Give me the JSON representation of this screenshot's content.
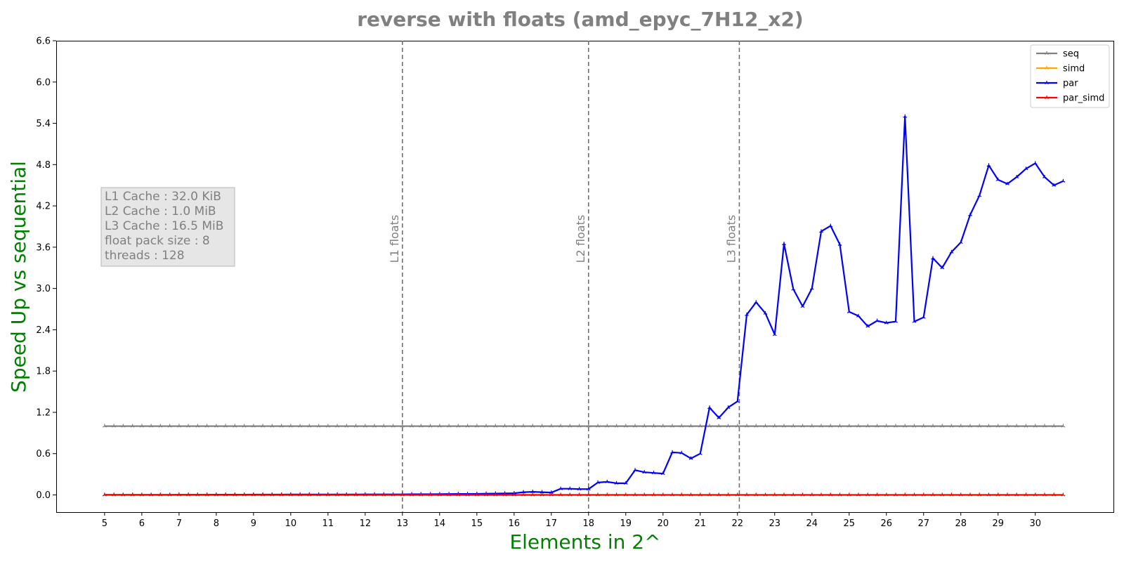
{
  "chart_data": {
    "type": "line",
    "title": "reverse with floats  (amd_epyc_7H12_x2)",
    "xlabel": "Elements in 2^",
    "ylabel": "Speed Up vs sequential",
    "xlim": [
      3.7,
      32.1
    ],
    "ylim": [
      -0.25,
      6.6
    ],
    "x_ticks": [
      "5",
      "6",
      "7",
      "8",
      "9",
      "10",
      "11",
      "12",
      "13",
      "14",
      "15",
      "16",
      "17",
      "18",
      "19",
      "20",
      "21",
      "22",
      "23",
      "24",
      "25",
      "26",
      "27",
      "28",
      "29",
      "30"
    ],
    "y_ticks": [
      "0.0",
      "0.6",
      "1.2",
      "1.8",
      "2.4",
      "3.0",
      "3.6",
      "4.2",
      "4.8",
      "5.4",
      "6.0",
      "6.6"
    ],
    "grid": false,
    "legend_position": "top-right",
    "x": [
      5,
      5.25,
      5.5,
      5.75,
      6,
      6.25,
      6.5,
      6.75,
      7,
      7.25,
      7.5,
      7.75,
      8,
      8.25,
      8.5,
      8.75,
      9,
      9.25,
      9.5,
      9.75,
      10,
      10.25,
      10.5,
      10.75,
      11,
      11.25,
      11.5,
      11.75,
      12,
      12.25,
      12.5,
      12.75,
      13,
      13.25,
      13.5,
      13.75,
      14,
      14.25,
      14.5,
      14.75,
      15,
      15.25,
      15.5,
      15.75,
      16,
      16.25,
      16.5,
      16.75,
      17,
      17.25,
      17.5,
      17.75,
      18,
      18.25,
      18.5,
      18.75,
      19,
      19.25,
      19.5,
      19.75,
      20,
      20.25,
      20.5,
      20.75,
      21,
      21.25,
      21.5,
      21.75,
      22,
      22.25,
      22.5,
      22.75,
      23,
      23.25,
      23.5,
      23.75,
      24,
      24.25,
      24.5,
      24.75,
      25,
      25.25,
      25.5,
      25.75,
      26,
      26.25,
      26.5,
      26.75,
      27,
      27.25,
      27.5,
      27.75,
      28,
      28.25,
      28.5,
      28.75,
      29,
      29.25,
      29.5,
      29.75,
      30,
      30.25,
      30.5,
      30.75
    ],
    "series": [
      {
        "name": "seq",
        "color": "#808080",
        "values": [
          1,
          1,
          1,
          1,
          1,
          1,
          1,
          1,
          1,
          1,
          1,
          1,
          1,
          1,
          1,
          1,
          1,
          1,
          1,
          1,
          1,
          1,
          1,
          1,
          1,
          1,
          1,
          1,
          1,
          1,
          1,
          1,
          1,
          1,
          1,
          1,
          1,
          1,
          1,
          1,
          1,
          1,
          1,
          1,
          1,
          1,
          1,
          1,
          1,
          1,
          1,
          1,
          1,
          1,
          1,
          1,
          1,
          1,
          1,
          1,
          1,
          1,
          1,
          1,
          1,
          1,
          1,
          1,
          1,
          1,
          1,
          1,
          1,
          1,
          1,
          1,
          1,
          1,
          1,
          1,
          1,
          1,
          1,
          1,
          1,
          1,
          1,
          1,
          1,
          1,
          1,
          1,
          1,
          1,
          1,
          1,
          1,
          1,
          1,
          1,
          1,
          1,
          1,
          1
        ]
      },
      {
        "name": "simd",
        "color": "#ffa500",
        "values": [
          0,
          0,
          0,
          0,
          0,
          0,
          0,
          0,
          0,
          0,
          0,
          0,
          0,
          0,
          0,
          0,
          0,
          0,
          0,
          0,
          0,
          0,
          0,
          0,
          0,
          0,
          0,
          0,
          0,
          0,
          0,
          0,
          0,
          0,
          0,
          0,
          0,
          0,
          0,
          0,
          0,
          0,
          0,
          0,
          0,
          0,
          0,
          0,
          0,
          0,
          0,
          0,
          0,
          0,
          0,
          0,
          0,
          0,
          0,
          0,
          0,
          0,
          0,
          0,
          0,
          0,
          0,
          0,
          0,
          0,
          0,
          0,
          0,
          0,
          0,
          0,
          0,
          0,
          0,
          0,
          0,
          0,
          0,
          0,
          0,
          0,
          0,
          0,
          0,
          0,
          0,
          0,
          0,
          0,
          0,
          0,
          0,
          0,
          0,
          0,
          0,
          0,
          0,
          0
        ]
      },
      {
        "name": "par",
        "color": "#0000ff",
        "values": [
          0.002,
          0.002,
          0.002,
          0.002,
          0.002,
          0.002,
          0.002,
          0.002,
          0.003,
          0.003,
          0.003,
          0.003,
          0.004,
          0.004,
          0.004,
          0.004,
          0.005,
          0.005,
          0.005,
          0.005,
          0.006,
          0.006,
          0.006,
          0.006,
          0.007,
          0.007,
          0.007,
          0.007,
          0.008,
          0.008,
          0.008,
          0.008,
          0.008,
          0.01,
          0.01,
          0.01,
          0.012,
          0.013,
          0.014,
          0.014,
          0.015,
          0.018,
          0.02,
          0.022,
          0.025,
          0.04,
          0.045,
          0.04,
          0.035,
          0.09,
          0.09,
          0.085,
          0.085,
          0.18,
          0.19,
          0.17,
          0.17,
          0.36,
          0.33,
          0.32,
          0.31,
          0.62,
          0.61,
          0.53,
          0.6,
          1.27,
          1.12,
          1.27,
          1.36,
          2.62,
          2.8,
          2.64,
          2.33,
          3.65,
          2.99,
          2.74,
          3.0,
          3.83,
          3.91,
          3.64,
          2.66,
          2.6,
          2.45,
          2.53,
          2.5,
          2.52,
          5.5,
          2.52,
          2.58,
          3.44,
          3.3,
          3.53,
          3.67,
          4.07,
          4.35,
          4.79,
          4.58,
          4.52,
          4.62,
          4.74,
          4.82,
          4.62,
          4.5,
          4.56
        ]
      },
      {
        "name": "par_simd",
        "color": "#ff0000",
        "values": [
          0,
          0,
          0,
          0,
          0,
          0,
          0,
          0,
          0,
          0,
          0,
          0,
          0,
          0,
          0,
          0,
          0,
          0,
          0,
          0,
          0,
          0,
          0,
          0,
          0,
          0,
          0,
          0,
          0,
          0,
          0,
          0,
          0,
          0,
          0,
          0,
          0,
          0,
          0,
          0,
          0,
          0,
          0,
          0,
          0,
          0,
          0,
          0,
          0,
          0,
          0,
          0,
          0,
          0,
          0,
          0,
          0,
          0,
          0,
          0,
          0,
          0,
          0,
          0,
          0,
          0,
          0,
          0,
          0,
          0,
          0,
          0,
          0,
          0,
          0,
          0,
          0,
          0,
          0,
          0,
          0,
          0,
          0,
          0,
          0,
          0,
          0,
          0,
          0,
          0,
          0,
          0,
          0,
          0,
          0,
          0,
          0,
          0,
          0,
          0,
          0,
          0,
          0,
          0
        ]
      }
    ],
    "vlines": [
      {
        "x": 13,
        "label": "L1 floats"
      },
      {
        "x": 18,
        "label": "L2 floats"
      },
      {
        "x": 22.05,
        "label": "L3 floats"
      }
    ],
    "info_box": [
      "L1 Cache : 32.0 KiB",
      "L2 Cache : 1.0 MiB",
      "L3 Cache : 16.5 MiB",
      "float pack size : 8",
      "threads : 128"
    ]
  }
}
